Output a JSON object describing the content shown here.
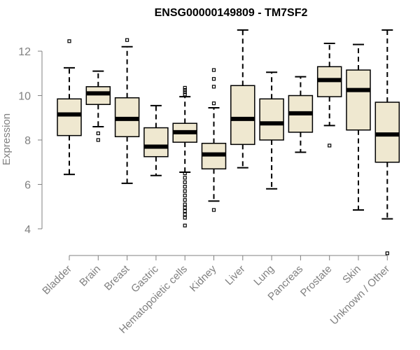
{
  "chart_data": {
    "type": "boxplot",
    "title": "ENSG00000149809 - TM7SF2",
    "xlabel": "",
    "ylabel": "Expression",
    "ylim": [
      2.8,
      13.2
    ],
    "yticks": [
      4,
      6,
      8,
      10,
      12
    ],
    "grid": false,
    "legend": "none",
    "colors": {
      "box_fill": "#efe8d0",
      "box_stroke": "#000000",
      "axis": "#808080"
    },
    "categories": [
      "Bladder",
      "Brain",
      "Breast",
      "Gastric",
      "Hematopoietic cells",
      "Kidney",
      "Liver",
      "Lung",
      "Pancreas",
      "Prostate",
      "Skin",
      "Unknown / Other"
    ],
    "series": [
      {
        "name": "Bladder",
        "whisker_low": 6.45,
        "q1": 8.2,
        "median": 9.15,
        "q3": 9.85,
        "whisker_high": 11.25,
        "outliers": [
          12.45
        ]
      },
      {
        "name": "Brain",
        "whisker_low": 8.6,
        "q1": 9.6,
        "median": 10.1,
        "q3": 10.4,
        "whisker_high": 11.1,
        "outliers": [
          8.3,
          8.0
        ]
      },
      {
        "name": "Breast",
        "whisker_low": 6.05,
        "q1": 8.15,
        "median": 8.95,
        "q3": 9.9,
        "whisker_high": 12.2,
        "outliers": [
          12.5
        ]
      },
      {
        "name": "Gastric",
        "whisker_low": 6.4,
        "q1": 7.25,
        "median": 7.7,
        "q3": 8.55,
        "whisker_high": 9.55,
        "outliers": []
      },
      {
        "name": "Hematopoietic cells",
        "whisker_low": 6.55,
        "q1": 7.9,
        "median": 8.35,
        "q3": 8.75,
        "whisker_high": 9.95,
        "outliers": [
          10.05,
          10.15,
          10.25,
          10.35,
          6.5,
          6.3,
          6.1,
          5.9,
          5.7,
          5.5,
          5.3,
          5.1,
          4.95,
          4.8,
          4.65,
          4.5,
          4.15
        ]
      },
      {
        "name": "Kidney",
        "whisker_low": 5.25,
        "q1": 6.7,
        "median": 7.35,
        "q3": 7.85,
        "whisker_high": 9.45,
        "outliers": [
          11.15,
          10.75,
          10.4,
          9.65,
          4.85
        ]
      },
      {
        "name": "Liver",
        "whisker_low": 6.75,
        "q1": 7.8,
        "median": 8.95,
        "q3": 10.45,
        "whisker_high": 12.95,
        "outliers": []
      },
      {
        "name": "Lung",
        "whisker_low": 5.8,
        "q1": 8.0,
        "median": 8.75,
        "q3": 9.85,
        "whisker_high": 11.05,
        "outliers": []
      },
      {
        "name": "Pancreas",
        "whisker_low": 7.45,
        "q1": 8.35,
        "median": 9.2,
        "q3": 10.0,
        "whisker_high": 10.85,
        "outliers": []
      },
      {
        "name": "Prostate",
        "whisker_low": 8.65,
        "q1": 9.95,
        "median": 10.7,
        "q3": 11.3,
        "whisker_high": 12.35,
        "outliers": [
          7.75
        ]
      },
      {
        "name": "Skin",
        "whisker_low": 4.85,
        "q1": 8.45,
        "median": 10.25,
        "q3": 11.15,
        "whisker_high": 12.3,
        "outliers": []
      },
      {
        "name": "Unknown / Other",
        "whisker_low": 4.45,
        "q1": 7.0,
        "median": 8.25,
        "q3": 9.7,
        "whisker_high": 12.95,
        "outliers": [
          2.9
        ]
      }
    ]
  }
}
